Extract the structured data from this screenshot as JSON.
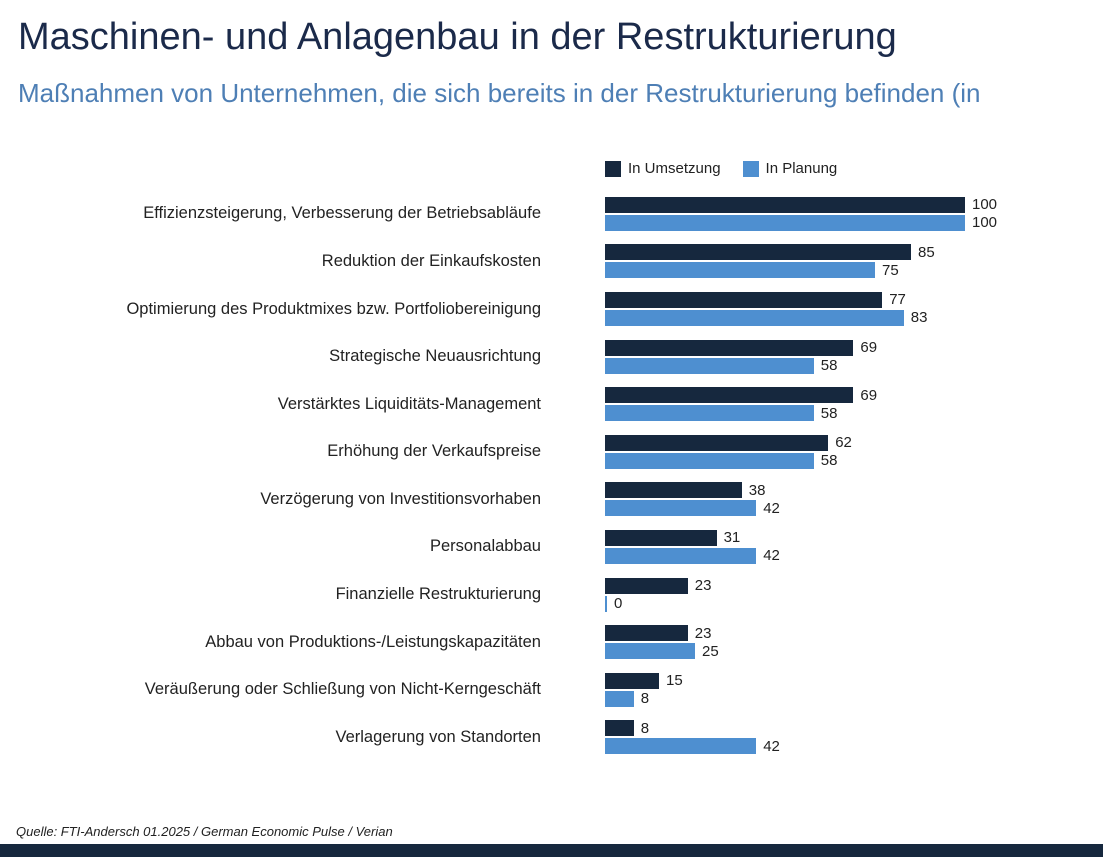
{
  "header": {
    "title": "Maschinen- und Anlagenbau in der Restrukturierung",
    "subtitle": "Maßnahmen von Unternehmen, die sich bereits in der Restrukturierung befinden (in"
  },
  "legend": [
    {
      "label": "In Umsetzung",
      "color": "#16283e"
    },
    {
      "label": "In Planung",
      "color": "#4e8fd0"
    }
  ],
  "chart_data": {
    "type": "bar",
    "orientation": "horizontal",
    "title": "Maschinen- und Anlagenbau in der Restrukturierung",
    "subtitle": "Maßnahmen von Unternehmen, die sich bereits in der Restrukturierung befinden (in",
    "categories": [
      "Effizienzsteigerung, Verbesserung der Betriebsabläufe",
      "Reduktion der Einkaufskosten",
      "Optimierung des Produktmixes bzw. Portfoliobereinigung",
      "Strategische Neuausrichtung",
      "Verstärktes Liquiditäts-Management",
      "Erhöhung der Verkaufspreise",
      "Verzögerung von Investitionsvorhaben",
      "Personalabbau",
      "Finanzielle Restrukturierung",
      "Abbau von Produktions-/Leistungskapazitäten",
      "Veräußerung oder Schließung von Nicht-Kerngeschäft",
      "Verlagerung von Standorten"
    ],
    "series": [
      {
        "name": "In Umsetzung",
        "color": "#16283e",
        "values": [
          100,
          85,
          77,
          69,
          69,
          62,
          38,
          31,
          23,
          23,
          15,
          8
        ]
      },
      {
        "name": "In Planung",
        "color": "#4e8fd0",
        "values": [
          100,
          75,
          83,
          58,
          58,
          58,
          42,
          42,
          0,
          25,
          8,
          42
        ]
      }
    ],
    "xlim": [
      0,
      100
    ],
    "value_labels": true,
    "grid": false,
    "legend_position": "top"
  },
  "footer": {
    "source": "Quelle: FTI-Andersch 01.2025 / German Economic Pulse / Verian"
  },
  "colors": {
    "title": "#1b2a4a",
    "subtitle": "#4e7fb5",
    "bar_dark": "#16283e",
    "bar_light": "#4e8fd0",
    "bottom_bar": "#16283e"
  }
}
